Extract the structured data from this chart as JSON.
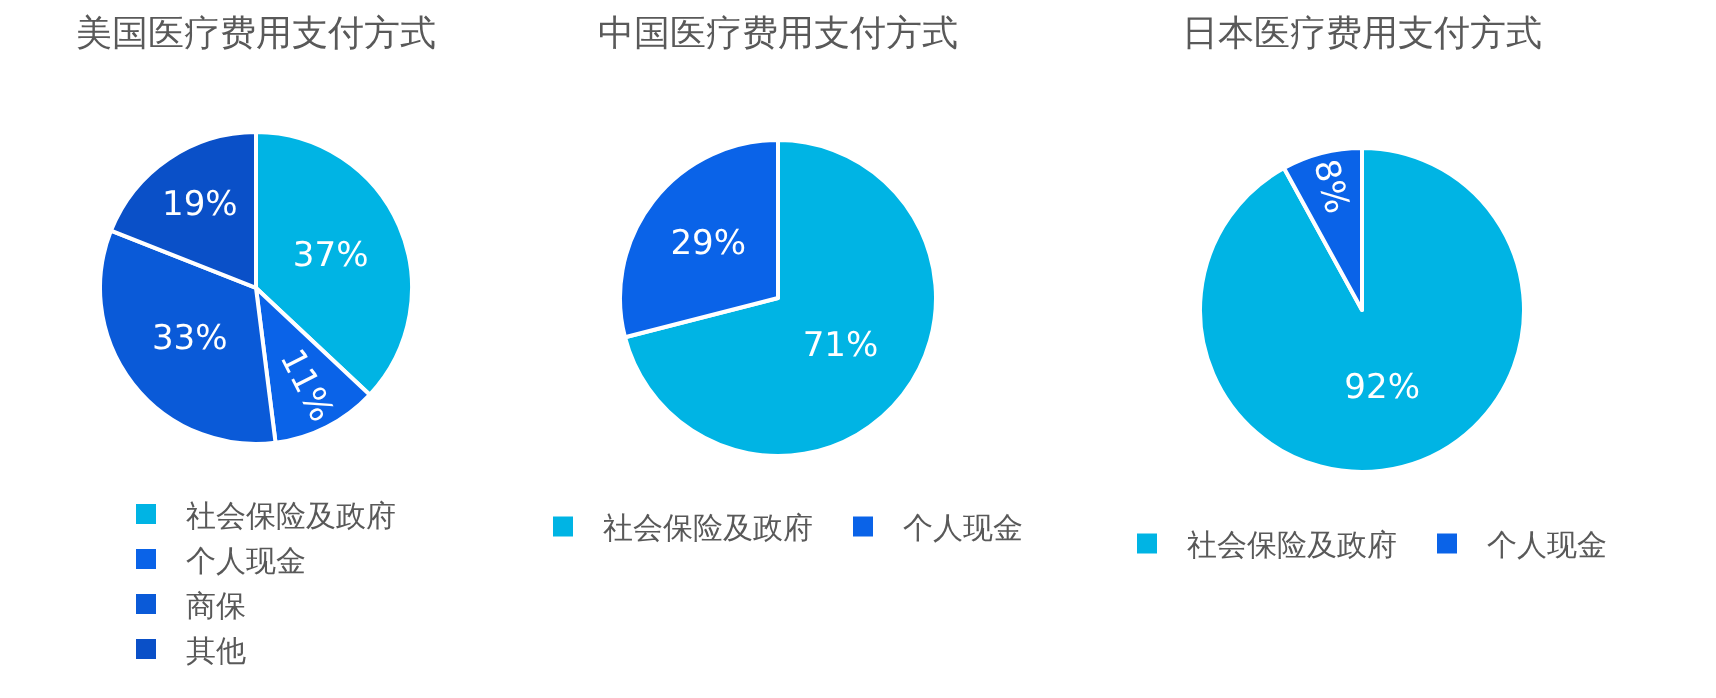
{
  "chart_data": [
    {
      "type": "pie",
      "title": "美国医疗费用支付方式",
      "categories": [
        "社会保险及政府",
        "个人现金",
        "商保",
        "其他"
      ],
      "values": [
        37,
        11,
        33,
        19
      ],
      "value_labels": [
        "37%",
        "11%",
        "33%",
        "19%"
      ],
      "colors": [
        "#00b4e4",
        "#0a63e8",
        "#0a5ad8",
        "#0a50c8"
      ],
      "legend": "bottom"
    },
    {
      "type": "pie",
      "title": "中国医疗费用支付方式",
      "categories": [
        "社会保险及政府",
        "个人现金"
      ],
      "values": [
        71,
        29
      ],
      "value_labels": [
        "71%",
        "29%"
      ],
      "colors": [
        "#00b4e4",
        "#0a63e8"
      ],
      "legend": "bottom"
    },
    {
      "type": "pie",
      "title": "日本医疗费用支付方式",
      "categories": [
        "社会保险及政府",
        "个人现金"
      ],
      "values": [
        92,
        8
      ],
      "value_labels": [
        "92%",
        "8%"
      ],
      "colors": [
        "#00b4e4",
        "#0a63e8"
      ],
      "legend": "bottom"
    }
  ]
}
